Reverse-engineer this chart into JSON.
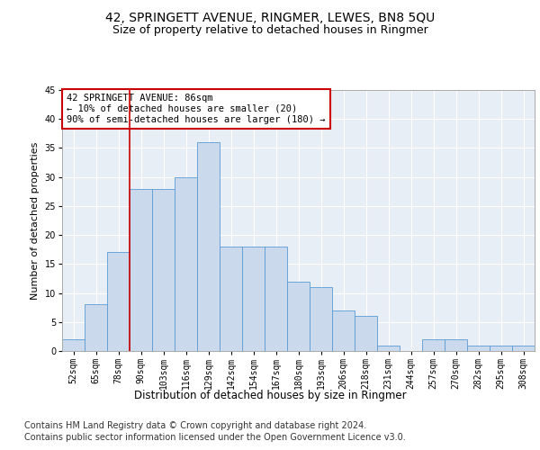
{
  "title1": "42, SPRINGETT AVENUE, RINGMER, LEWES, BN8 5QU",
  "title2": "Size of property relative to detached houses in Ringmer",
  "xlabel": "Distribution of detached houses by size in Ringmer",
  "ylabel": "Number of detached properties",
  "bar_values": [
    2,
    8,
    17,
    28,
    28,
    30,
    36,
    18,
    18,
    18,
    12,
    11,
    7,
    6,
    1,
    0,
    2,
    2,
    1,
    1,
    1
  ],
  "bar_labels": [
    "52sqm",
    "65sqm",
    "78sqm",
    "90sqm",
    "103sqm",
    "116sqm",
    "129sqm",
    "142sqm",
    "154sqm",
    "167sqm",
    "180sqm",
    "193sqm",
    "206sqm",
    "218sqm",
    "231sqm",
    "244sqm",
    "257sqm",
    "270sqm",
    "282sqm",
    "295sqm",
    "308sqm"
  ],
  "bar_color": "#cad9ec",
  "bar_edge_color": "#5b9bd5",
  "background_color": "#e8eef5",
  "annotation_text_line1": "42 SPRINGETT AVENUE: 86sqm",
  "annotation_text_line2": "← 10% of detached houses are smaller (20)",
  "annotation_text_line3": "90% of semi-detached houses are larger (180) →",
  "annotation_box_facecolor": "#ffffff",
  "annotation_box_edgecolor": "#cc0000",
  "vline_color": "#cc0000",
  "vline_x": 2.5,
  "ylim": [
    0,
    45
  ],
  "yticks": [
    0,
    5,
    10,
    15,
    20,
    25,
    30,
    35,
    40,
    45
  ],
  "footer_line1": "Contains HM Land Registry data © Crown copyright and database right 2024.",
  "footer_line2": "Contains public sector information licensed under the Open Government Licence v3.0.",
  "title1_fontsize": 10,
  "title2_fontsize": 9,
  "ylabel_fontsize": 8,
  "xlabel_fontsize": 8.5,
  "tick_fontsize": 7,
  "annotation_fontsize": 7.5,
  "footer_fontsize": 7
}
